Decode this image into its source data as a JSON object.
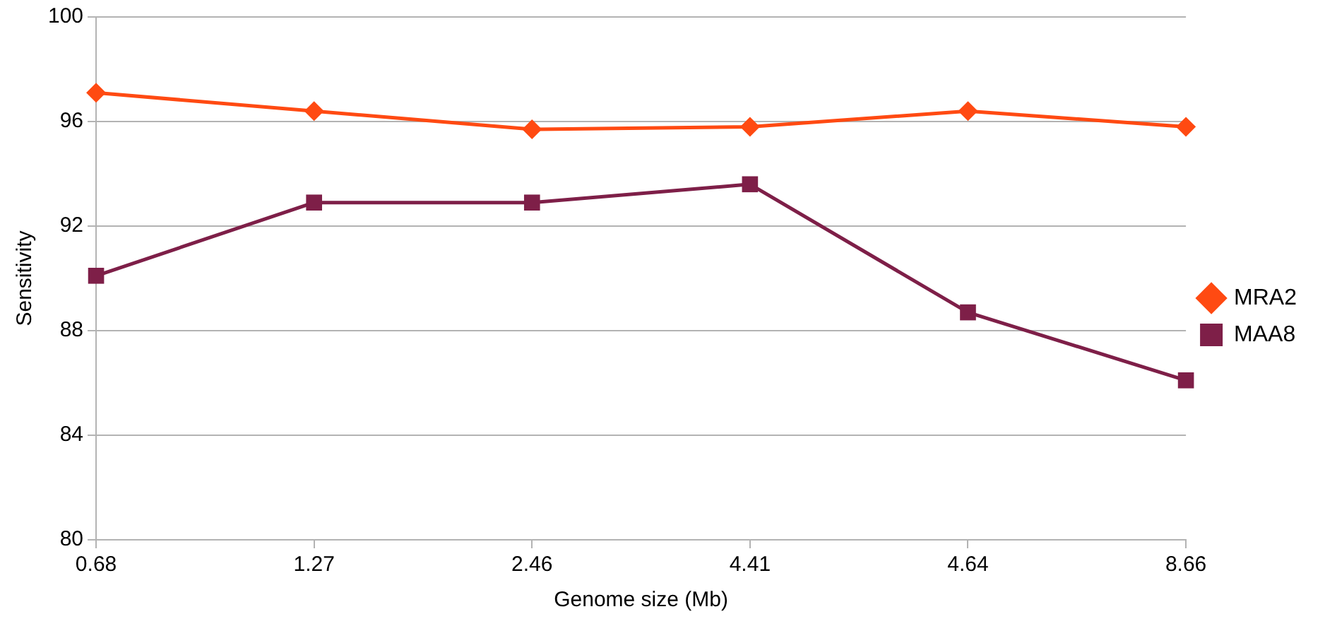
{
  "chart_data": {
    "type": "line",
    "xlabel": "Genome size (Mb)",
    "ylabel": "Sensitivity",
    "categories": [
      "0.68",
      "1.27",
      "2.46",
      "4.41",
      "4.64",
      "8.66"
    ],
    "series": [
      {
        "name": "MRA2",
        "color": "#ff4a12",
        "marker": "diamond",
        "values": [
          97.1,
          96.4,
          95.7,
          95.8,
          96.4,
          95.8
        ]
      },
      {
        "name": "MAA8",
        "color": "#7e1f48",
        "marker": "square",
        "values": [
          90.1,
          92.9,
          92.9,
          93.6,
          88.7,
          86.1
        ]
      }
    ],
    "ylim": [
      80,
      100
    ],
    "yticks": [
      80,
      84,
      88,
      92,
      96,
      100
    ],
    "grid": "y",
    "legend": "right",
    "line_style": "solid"
  }
}
